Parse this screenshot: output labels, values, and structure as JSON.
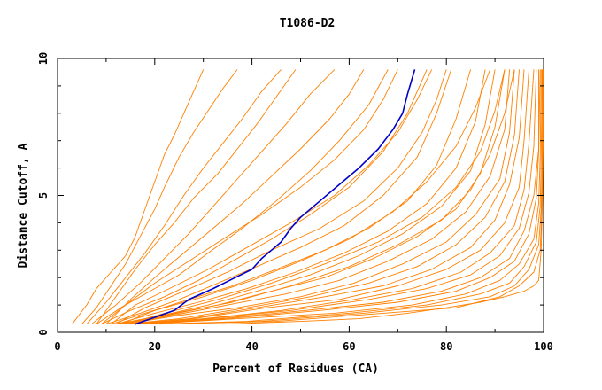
{
  "chart_data": {
    "type": "line",
    "title": "T1086-D2",
    "xlabel": "Percent of Residues (CA)",
    "ylabel": "Distance Cutoff, A",
    "xlim": [
      0,
      100
    ],
    "ylim": [
      0,
      10
    ],
    "xticks": [
      0,
      20,
      40,
      60,
      80,
      100
    ],
    "yticks": [
      0,
      5,
      10
    ],
    "grid": false,
    "legend": "none",
    "colors": {
      "background": "#c8c8c8",
      "series": "#ff8000",
      "highlight": "#0000c8",
      "axis": "#000000"
    },
    "series": [
      {
        "highlight": true,
        "x": [
          16,
          20,
          24,
          27,
          32,
          36,
          40,
          42,
          44,
          46,
          48,
          50,
          54,
          58,
          62,
          66,
          69,
          71,
          72,
          73,
          73.5
        ],
        "y": [
          0.3,
          0.55,
          0.8,
          1.2,
          1.6,
          1.95,
          2.3,
          2.7,
          3.0,
          3.3,
          3.8,
          4.2,
          4.8,
          5.4,
          6.0,
          6.7,
          7.4,
          8.0,
          8.7,
          9.3,
          9.6
        ]
      },
      {
        "x": [
          3,
          6,
          8,
          11,
          14,
          16,
          18,
          20,
          22,
          24,
          26,
          28,
          30
        ],
        "y": [
          0.3,
          1.0,
          1.6,
          2.2,
          2.8,
          3.5,
          4.5,
          5.5,
          6.5,
          7.2,
          8.0,
          8.8,
          9.6
        ]
      },
      {
        "x": [
          5,
          8,
          11,
          14,
          17,
          20,
          22,
          25,
          28,
          31,
          34,
          37
        ],
        "y": [
          0.3,
          0.9,
          1.7,
          2.5,
          3.5,
          4.5,
          5.3,
          6.4,
          7.3,
          8.1,
          8.9,
          9.6
        ]
      },
      {
        "x": [
          6,
          10,
          14,
          18,
          22,
          26,
          30,
          34,
          38,
          42,
          46
        ],
        "y": [
          0.3,
          1.1,
          2.0,
          2.9,
          3.9,
          5.0,
          6.0,
          6.9,
          7.8,
          8.8,
          9.6
        ]
      },
      {
        "x": [
          7,
          12,
          17,
          22,
          27,
          32,
          37,
          42,
          47,
          52,
          57
        ],
        "y": [
          0.3,
          1.0,
          1.8,
          2.7,
          3.6,
          4.6,
          5.6,
          6.6,
          7.6,
          8.7,
          9.6
        ]
      },
      {
        "x": [
          8,
          13,
          19,
          25,
          31,
          38,
          45,
          52,
          58,
          64,
          68
        ],
        "y": [
          0.3,
          0.9,
          1.5,
          2.1,
          2.9,
          3.8,
          4.8,
          5.9,
          7.0,
          8.3,
          9.6
        ]
      },
      {
        "x": [
          9,
          15,
          22,
          29,
          36,
          44,
          52,
          60,
          67,
          72,
          76
        ],
        "y": [
          0.3,
          0.8,
          1.3,
          1.9,
          2.6,
          3.4,
          4.3,
          5.3,
          6.6,
          8.0,
          9.6
        ]
      },
      {
        "x": [
          10,
          17,
          25,
          33,
          41,
          50,
          59,
          67,
          74,
          78,
          81
        ],
        "y": [
          0.3,
          0.7,
          1.2,
          1.8,
          2.4,
          3.1,
          3.9,
          5.0,
          6.4,
          8.0,
          9.6
        ]
      },
      {
        "x": [
          11,
          18,
          27,
          36,
          45,
          55,
          64,
          72,
          78,
          82,
          85
        ],
        "y": [
          0.3,
          0.7,
          1.2,
          1.7,
          2.3,
          3.0,
          3.8,
          4.8,
          6.1,
          7.8,
          9.6
        ]
      },
      {
        "x": [
          12,
          20,
          29,
          39,
          49,
          59,
          68,
          76,
          82,
          86,
          88
        ],
        "y": [
          0.3,
          0.7,
          1.1,
          1.6,
          2.2,
          2.9,
          3.7,
          4.7,
          6.0,
          7.7,
          9.6
        ]
      },
      {
        "x": [
          12,
          21,
          31,
          41,
          52,
          62,
          71,
          79,
          85,
          88,
          90
        ],
        "y": [
          0.3,
          0.6,
          1.0,
          1.5,
          2.1,
          2.8,
          3.6,
          4.6,
          5.9,
          7.6,
          9.6
        ]
      },
      {
        "x": [
          13,
          22,
          33,
          44,
          55,
          65,
          74,
          82,
          87,
          90,
          92
        ],
        "y": [
          0.3,
          0.6,
          1.0,
          1.5,
          2.0,
          2.7,
          3.5,
          4.5,
          5.8,
          7.5,
          9.6
        ]
      },
      {
        "x": [
          13,
          23,
          35,
          47,
          58,
          68,
          77,
          84,
          89,
          92,
          93
        ],
        "y": [
          0.3,
          0.6,
          1.0,
          1.4,
          1.9,
          2.6,
          3.4,
          4.4,
          5.7,
          7.4,
          9.6
        ]
      },
      {
        "x": [
          14,
          24,
          37,
          50,
          61,
          71,
          80,
          86,
          91,
          93,
          94
        ],
        "y": [
          0.3,
          0.6,
          0.9,
          1.3,
          1.8,
          2.5,
          3.3,
          4.3,
          5.6,
          7.3,
          9.6
        ]
      },
      {
        "x": [
          14,
          25,
          39,
          52,
          64,
          74,
          82,
          88,
          92,
          94,
          95
        ],
        "y": [
          0.3,
          0.5,
          0.9,
          1.3,
          1.8,
          2.4,
          3.2,
          4.2,
          5.5,
          7.2,
          9.6
        ]
      },
      {
        "x": [
          15,
          27,
          41,
          55,
          67,
          77,
          85,
          90,
          93,
          95,
          96
        ],
        "y": [
          0.3,
          0.5,
          0.9,
          1.3,
          1.7,
          2.3,
          3.1,
          4.1,
          5.4,
          7.1,
          9.6
        ]
      },
      {
        "x": [
          15,
          28,
          43,
          58,
          70,
          80,
          87,
          92,
          95,
          96,
          97
        ],
        "y": [
          0.3,
          0.5,
          0.9,
          1.2,
          1.7,
          2.3,
          3.0,
          4.0,
          5.3,
          7.0,
          9.6
        ]
      },
      {
        "x": [
          16,
          30,
          46,
          61,
          73,
          83,
          89,
          94,
          96,
          97,
          98
        ],
        "y": [
          0.3,
          0.5,
          0.8,
          1.2,
          1.6,
          2.2,
          2.9,
          3.9,
          5.2,
          6.9,
          9.6
        ]
      },
      {
        "x": [
          16,
          31,
          48,
          64,
          76,
          85,
          91,
          95,
          97,
          98,
          98.5
        ],
        "y": [
          0.3,
          0.5,
          0.8,
          1.2,
          1.6,
          2.1,
          2.8,
          3.8,
          5.1,
          6.8,
          9.6
        ]
      },
      {
        "x": [
          17,
          33,
          51,
          67,
          79,
          87,
          93,
          96,
          98,
          99,
          99
        ],
        "y": [
          0.3,
          0.5,
          0.8,
          1.1,
          1.5,
          2.0,
          2.7,
          3.7,
          5.0,
          6.7,
          9.6
        ]
      },
      {
        "x": [
          18,
          35,
          54,
          70,
          82,
          89,
          94,
          97,
          98.5,
          99,
          99.3
        ],
        "y": [
          0.3,
          0.5,
          0.8,
          1.1,
          1.5,
          2.0,
          2.6,
          3.6,
          4.9,
          6.6,
          9.6
        ]
      },
      {
        "x": [
          18,
          37,
          57,
          73,
          84,
          91,
          95,
          98,
          99,
          99.3,
          99.5
        ],
        "y": [
          0.3,
          0.5,
          0.7,
          1.0,
          1.4,
          1.9,
          2.5,
          3.4,
          4.7,
          6.4,
          9.6
        ]
      },
      {
        "x": [
          19,
          39,
          60,
          76,
          87,
          93,
          96,
          98.5,
          99.3,
          99.5,
          99.7
        ],
        "y": [
          0.3,
          0.4,
          0.7,
          1.0,
          1.4,
          1.8,
          2.4,
          3.3,
          4.6,
          6.3,
          9.6
        ]
      },
      {
        "x": [
          20,
          42,
          63,
          79,
          89,
          94,
          97,
          99,
          99.5,
          99.7,
          99.8
        ],
        "y": [
          0.3,
          0.4,
          0.7,
          1.0,
          1.3,
          1.7,
          2.3,
          3.2,
          4.5,
          6.2,
          9.6
        ]
      },
      {
        "x": [
          21,
          45,
          67,
          82,
          91,
          95,
          98,
          99.3,
          99.6,
          99.8,
          99.9
        ],
        "y": [
          0.3,
          0.4,
          0.7,
          0.9,
          1.3,
          1.7,
          2.2,
          3.0,
          4.3,
          6.0,
          9.6
        ]
      },
      {
        "x": [
          8,
          12,
          16,
          20,
          24,
          28,
          33,
          37,
          41,
          45,
          49
        ],
        "y": [
          0.3,
          1.3,
          2.3,
          3.2,
          4.0,
          4.9,
          5.8,
          6.7,
          7.6,
          8.6,
          9.6
        ]
      },
      {
        "x": [
          10,
          15,
          20,
          26,
          32,
          38,
          44,
          50,
          56,
          60,
          63
        ],
        "y": [
          0.3,
          1.2,
          2.0,
          2.9,
          3.8,
          4.7,
          5.7,
          6.7,
          7.8,
          8.7,
          9.6
        ]
      },
      {
        "x": [
          9,
          14,
          20,
          27,
          34,
          42,
          50,
          57,
          63,
          67,
          70
        ],
        "y": [
          0.3,
          1.0,
          1.8,
          2.6,
          3.4,
          4.3,
          5.3,
          6.3,
          7.4,
          8.5,
          9.6
        ]
      },
      {
        "x": [
          11,
          16,
          23,
          31,
          39,
          48,
          57,
          64,
          70,
          74,
          77
        ],
        "y": [
          0.3,
          1.0,
          1.6,
          2.3,
          3.1,
          4.0,
          5.0,
          6.1,
          7.3,
          8.5,
          9.6
        ]
      },
      {
        "x": [
          12,
          18,
          26,
          35,
          44,
          54,
          63,
          70,
          75,
          78,
          80
        ],
        "y": [
          0.3,
          0.9,
          1.5,
          2.2,
          3.0,
          3.8,
          4.8,
          6.0,
          7.3,
          8.5,
          9.6
        ]
      },
      {
        "x": [
          34,
          50,
          62,
          72,
          80,
          87,
          92,
          96,
          98,
          99,
          99.5,
          99.8,
          100,
          100
        ],
        "y": [
          0.3,
          0.4,
          0.5,
          0.7,
          0.9,
          1.1,
          1.3,
          1.5,
          1.7,
          1.9,
          3.0,
          5.0,
          8.0,
          9.6
        ]
      },
      {
        "x": [
          13,
          20,
          30,
          40,
          50,
          60,
          69,
          76,
          82,
          86,
          89
        ],
        "y": [
          0.3,
          0.8,
          1.3,
          1.9,
          2.6,
          3.4,
          4.4,
          5.5,
          6.8,
          8.2,
          9.6
        ]
      },
      {
        "x": [
          14,
          22,
          33,
          44,
          55,
          66,
          75,
          82,
          87,
          90,
          92
        ],
        "y": [
          0.3,
          0.7,
          1.2,
          1.8,
          2.5,
          3.3,
          4.2,
          5.3,
          6.6,
          8.1,
          9.6
        ]
      },
      {
        "x": [
          15,
          24,
          36,
          48,
          60,
          70,
          79,
          85,
          89,
          92,
          94
        ],
        "y": [
          0.3,
          0.7,
          1.1,
          1.7,
          2.4,
          3.2,
          4.1,
          5.2,
          6.5,
          8.0,
          9.6
        ]
      }
    ]
  }
}
